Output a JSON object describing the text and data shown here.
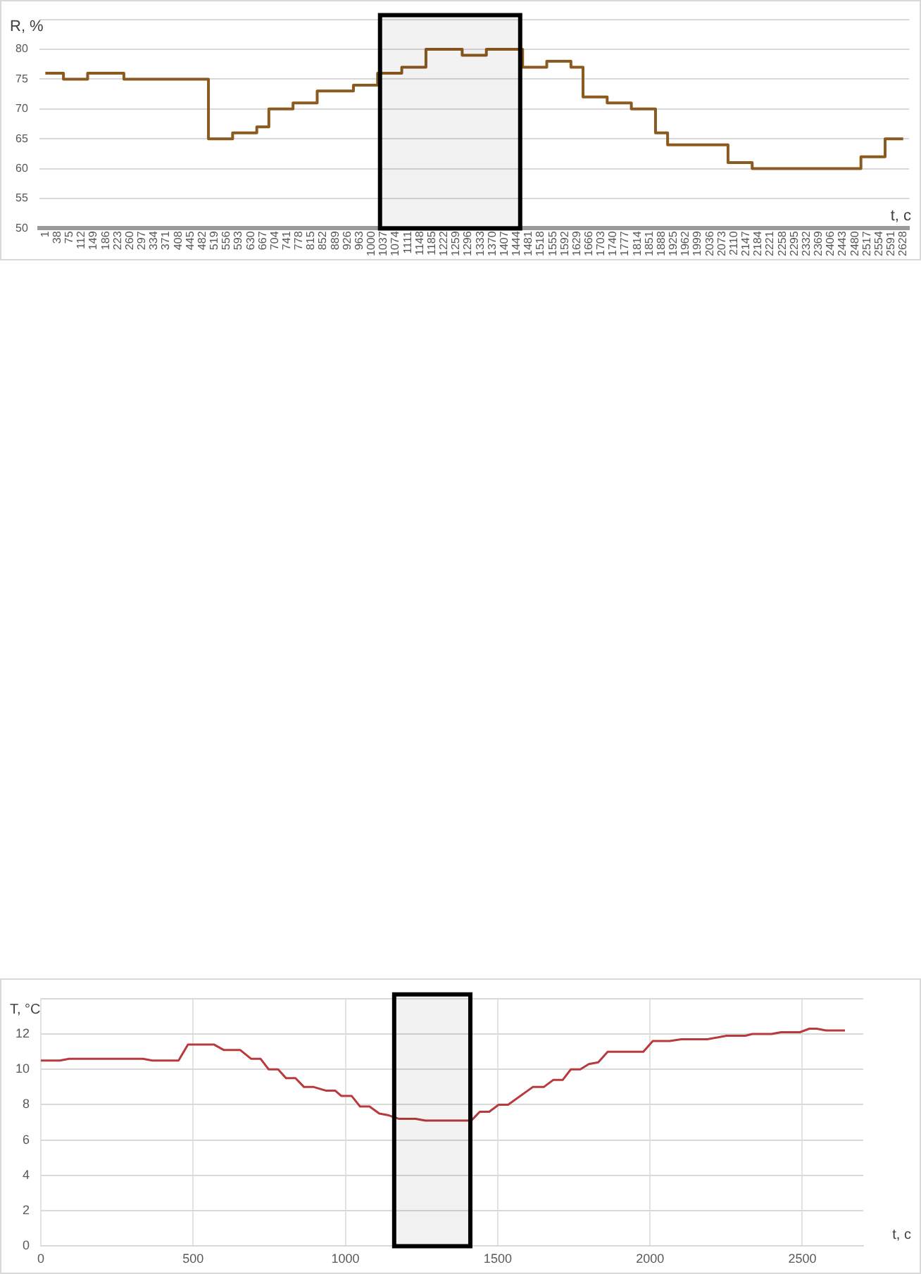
{
  "chart_data": [
    {
      "type": "step",
      "ylabel": "R, %",
      "xlabel": "t, c",
      "categories": [
        "1",
        "38",
        "75",
        "112",
        "149",
        "186",
        "223",
        "260",
        "297",
        "334",
        "371",
        "408",
        "445",
        "482",
        "519",
        "556",
        "593",
        "630",
        "667",
        "704",
        "741",
        "778",
        "815",
        "852",
        "889",
        "926",
        "963",
        "1000",
        "1037",
        "1074",
        "1111",
        "1148",
        "1185",
        "1222",
        "1259",
        "1296",
        "1333",
        "1370",
        "1407",
        "1444",
        "1481",
        "1518",
        "1555",
        "1592",
        "1629",
        "1666",
        "1703",
        "1740",
        "1777",
        "1814",
        "1851",
        "1888",
        "1925",
        "1962",
        "1999",
        "2036",
        "2073",
        "2110",
        "2147",
        "2184",
        "2221",
        "2258",
        "2295",
        "2332",
        "2369",
        "2406",
        "2443",
        "2480",
        "2517",
        "2554",
        "2591",
        "2628"
      ],
      "series": [
        {
          "color": "#8b5a1e",
          "values": [
            76,
            76,
            75,
            75,
            76,
            76,
            76,
            75,
            75,
            75,
            75,
            75,
            75,
            75,
            65,
            65,
            66,
            66,
            67,
            70,
            70,
            71,
            71,
            73,
            73,
            73,
            74,
            74,
            76,
            76,
            77,
            77,
            80,
            80,
            80,
            79,
            79,
            80,
            80,
            80,
            77,
            77,
            78,
            78,
            77,
            72,
            72,
            71,
            71,
            70,
            70,
            66,
            64,
            64,
            64,
            64,
            64,
            61,
            61,
            60,
            60,
            60,
            60,
            60,
            60,
            60,
            60,
            60,
            62,
            62,
            65,
            65
          ]
        }
      ],
      "ylim": [
        50,
        85
      ],
      "yticks": [
        50,
        55,
        60,
        65,
        70,
        75,
        80,
        {
          "value": 85,
          "label": null
        }
      ],
      "grid": "y",
      "legend": false,
      "marker": "none",
      "line_style": "solid",
      "bands": [
        {
          "axis": "x",
          "from": "1037",
          "to": "1444",
          "color": "#000000"
        }
      ]
    },
    {
      "type": "line",
      "ylabel": "T, °C",
      "xlabel": "t, c",
      "series": [
        {
          "color": "#b83a3c",
          "x": [
            0,
            62,
            93,
            335,
            366,
            452,
            483,
            569,
            600,
            654,
            690,
            721,
            748,
            779,
            805,
            836,
            864,
            896,
            935,
            966,
            986,
            1020,
            1048,
            1079,
            1111,
            1142,
            1176,
            1230,
            1262,
            1413,
            1441,
            1472,
            1503,
            1534,
            1615,
            1651,
            1682,
            1713,
            1740,
            1771,
            1799,
            1830,
            1861,
            1978,
            2009,
            2064,
            2103,
            2188,
            2251,
            2313,
            2336,
            2399,
            2430,
            2492,
            2523,
            2547,
            2578,
            2640
          ],
          "values": [
            10.5,
            10.5,
            10.6,
            10.6,
            10.5,
            10.5,
            11.4,
            11.4,
            11.1,
            11.1,
            10.6,
            10.6,
            10.0,
            10.0,
            9.5,
            9.5,
            9.0,
            9.0,
            8.8,
            8.8,
            8.5,
            8.5,
            7.9,
            7.9,
            7.5,
            7.4,
            7.2,
            7.2,
            7.1,
            7.1,
            7.6,
            7.6,
            8.0,
            8.0,
            9.0,
            9.0,
            9.4,
            9.4,
            10.0,
            10.0,
            10.3,
            10.4,
            11.0,
            11.0,
            11.6,
            11.6,
            11.7,
            11.7,
            11.9,
            11.9,
            12.0,
            12.0,
            12.1,
            12.1,
            12.3,
            12.3,
            12.2,
            12.2
          ]
        }
      ],
      "xlim": [
        0,
        2700
      ],
      "xticks": [
        0,
        500,
        1000,
        1500,
        2000,
        2500
      ],
      "ylim": [
        0,
        14
      ],
      "yticks": [
        0,
        2,
        4,
        6,
        8,
        10,
        12,
        {
          "value": 14,
          "label": null
        }
      ],
      "grid": true,
      "legend": false,
      "marker": "none",
      "line_style": "solid",
      "bands": [
        {
          "axis": "x",
          "from": 1160,
          "to": 1410,
          "color": "#000000"
        }
      ]
    }
  ]
}
